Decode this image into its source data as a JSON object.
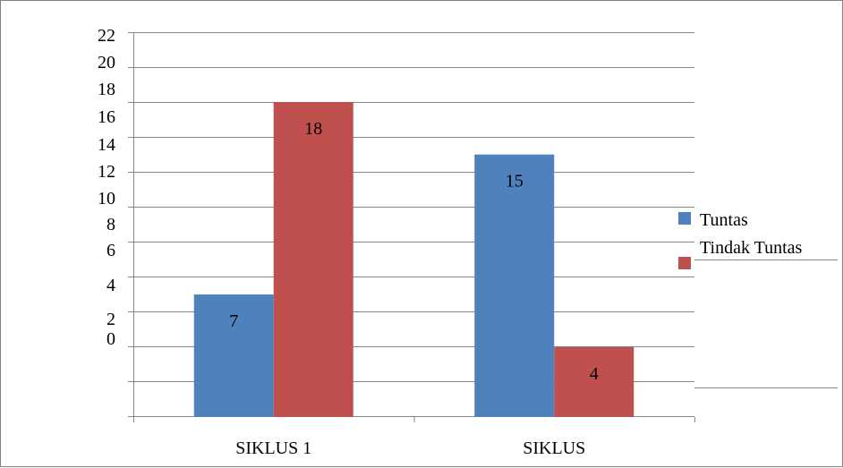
{
  "chart_data": {
    "type": "bar",
    "categories": [
      "SIKLUS 1",
      "SIKLUS"
    ],
    "series": [
      {
        "name": "Tuntas",
        "values": [
          7,
          15
        ],
        "color": "#4F81BD"
      },
      {
        "name": "Tindak Tuntas",
        "values": [
          18,
          4
        ],
        "color": "#C0504D"
      }
    ],
    "y_tick_labels": [
      "0",
      "2",
      "4",
      "6",
      "8",
      "10",
      "12",
      "14",
      "16",
      "18",
      "20",
      "22"
    ],
    "legend_position": "right",
    "grid": true,
    "axis_color": "#868686",
    "title": "",
    "xlabel": "",
    "ylabel": ""
  }
}
